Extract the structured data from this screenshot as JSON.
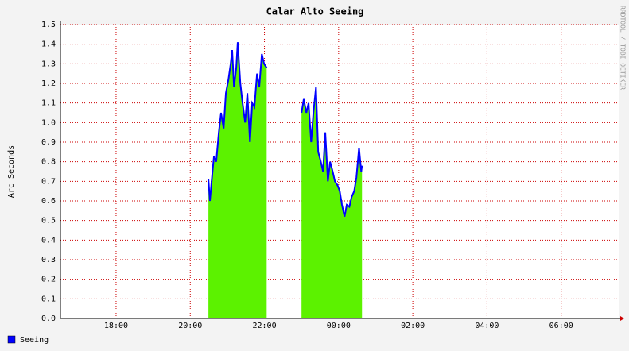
{
  "chart_data": {
    "type": "area",
    "title": "Calar Alto Seeing",
    "y_label": "Arc Seconds",
    "watermark": "RRDTOOL / TOBI OETIKER",
    "x": [
      20.49,
      20.53,
      20.6,
      20.64,
      20.7,
      20.77,
      20.83,
      20.9,
      20.96,
      21.03,
      21.09,
      21.13,
      21.18,
      21.24,
      21.28,
      21.35,
      21.41,
      21.48,
      21.54,
      21.61,
      21.67,
      21.73,
      21.8,
      21.86,
      21.93,
      21.99,
      22.06,
      22.5,
      23.0,
      23.06,
      23.13,
      23.19,
      23.26,
      23.32,
      23.39,
      23.45,
      23.52,
      23.58,
      23.64,
      23.71,
      23.77,
      23.84,
      23.9,
      23.97,
      24.03,
      24.09,
      24.16,
      24.22,
      24.29,
      24.35,
      24.42,
      24.48,
      24.55,
      24.61,
      24.63
    ],
    "series": [
      {
        "name": "Seeing",
        "color": "#0000ff",
        "fill": "#5cf200",
        "values": [
          0.71,
          0.6,
          0.75,
          0.83,
          0.8,
          0.95,
          1.05,
          0.97,
          1.15,
          1.22,
          1.3,
          1.37,
          1.18,
          1.28,
          1.41,
          1.2,
          1.1,
          1.0,
          1.15,
          0.9,
          1.1,
          1.08,
          1.25,
          1.18,
          1.35,
          1.3,
          1.28,
          null,
          1.05,
          1.12,
          1.05,
          1.1,
          0.9,
          1.05,
          1.18,
          0.85,
          0.8,
          0.75,
          0.95,
          0.7,
          0.8,
          0.75,
          0.7,
          0.68,
          0.65,
          0.58,
          0.52,
          0.58,
          0.57,
          0.62,
          0.65,
          0.72,
          0.87,
          0.75,
          0.78
        ]
      }
    ],
    "xlim": [
      16.5,
      31.55
    ],
    "xticks": [
      {
        "value": 18,
        "label": "18:00"
      },
      {
        "value": 20,
        "label": "20:00"
      },
      {
        "value": 22,
        "label": "22:00"
      },
      {
        "value": 24,
        "label": "00:00"
      },
      {
        "value": 26,
        "label": "02:00"
      },
      {
        "value": 28,
        "label": "04:00"
      },
      {
        "value": 30,
        "label": "06:00"
      }
    ],
    "ylim": [
      0,
      1.5
    ],
    "yticks": [
      {
        "value": 0,
        "label": "0.0"
      },
      0.1,
      0.2,
      0.3,
      0.4,
      0.5,
      0.6,
      0.7,
      0.8,
      0.9,
      {
        "value": 1,
        "label": "1.0"
      },
      1.1,
      1.2,
      1.3,
      1.4,
      1.5
    ],
    "grid": true,
    "grid_color": "#cc0000"
  }
}
